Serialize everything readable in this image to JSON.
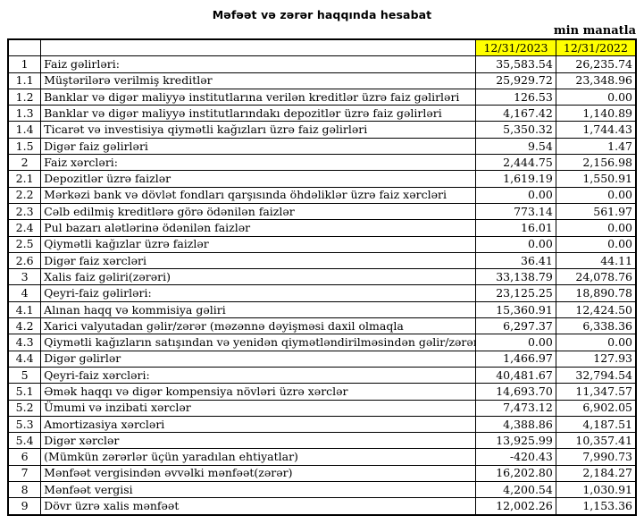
{
  "page": {
    "title": "Məfəət və zərər haqqında hesabat",
    "unit_note": "min manatla"
  },
  "table": {
    "header": {
      "period_2023": "12/31/2023",
      "period_2022": "12/31/2022",
      "highlight_color": "#FFFF00"
    },
    "rows": [
      {
        "no": "1",
        "label": "Faiz gəlirləri:",
        "v2023": "35,583.54",
        "v2022": "26,235.74",
        "bold_label": true,
        "bold_values": true
      },
      {
        "no": "1.1",
        "label": "Müştərilərə verilmiş kreditlər",
        "v2023": "25,929.72",
        "v2022": "23,348.96",
        "bold_label": false,
        "bold_values": false
      },
      {
        "no": "1.2",
        "label": "Banklar və digər maliyyə institutlarına verilən kreditlər üzrə faiz gəlirləri",
        "v2023": "126.53",
        "v2022": "0.00",
        "bold_label": false,
        "bold_values": false
      },
      {
        "no": "1.3",
        "label": "Banklar və digər maliyyə institutlarındakı depozitlər üzrə faiz gəlirləri",
        "v2023": "4,167.42",
        "v2022": "1,140.89",
        "bold_label": false,
        "bold_values": false
      },
      {
        "no": "1.4",
        "label": "Ticarət və investisiya qiymətli kağızları üzrə faiz gəlirləri",
        "v2023": "5,350.32",
        "v2022": "1,744.43",
        "bold_label": false,
        "bold_values": false
      },
      {
        "no": "1.5",
        "label": "Digər faiz gəlirləri",
        "v2023": "9.54",
        "v2022": "1.47",
        "bold_label": false,
        "bold_values": false
      },
      {
        "no": "2",
        "label": "Faiz xərcləri:",
        "v2023": "2,444.75",
        "v2022": "2,156.98",
        "bold_label": true,
        "bold_values": true
      },
      {
        "no": "2.1",
        "label": "Depozitlər üzrə faizlər",
        "v2023": "1,619.19",
        "v2022": "1,550.91",
        "bold_label": false,
        "bold_values": false
      },
      {
        "no": "2.2",
        "label": "Mərkəzi bank və dövlət fondları qarşısında öhdəliklər üzrə faiz xərcləri",
        "v2023": "0.00",
        "v2022": "0.00",
        "bold_label": false,
        "bold_values": false
      },
      {
        "no": "2.3",
        "label": "Cəlb edilmiş kreditlərə görə ödənilən faizlər",
        "v2023": "773.14",
        "v2022": "561.97",
        "bold_label": false,
        "bold_values": false
      },
      {
        "no": "2.4",
        "label": "Pul bazarı alətlərinə ödənilən faizlər",
        "v2023": "16.01",
        "v2022": "0.00",
        "bold_label": false,
        "bold_values": false
      },
      {
        "no": "2.5",
        "label": "Qiymətli kağızlar üzrə faizlər",
        "v2023": "0.00",
        "v2022": "0.00",
        "bold_label": false,
        "bold_values": false
      },
      {
        "no": "2.6",
        "label": "Digər faiz xərcləri",
        "v2023": "36.41",
        "v2022": "44.11",
        "bold_label": false,
        "bold_values": false
      },
      {
        "no": "3",
        "label": "Xalis faiz gəliri(zərəri)",
        "v2023": "33,138.79",
        "v2022": "24,078.76",
        "bold_label": true,
        "bold_values": true
      },
      {
        "no": "4",
        "label": "Qeyri-faiz gəlirləri:",
        "v2023": "23,125.25",
        "v2022": "18,890.78",
        "bold_label": true,
        "bold_values": true
      },
      {
        "no": "4.1",
        "label": "Alınan haqq və kommisiya gəliri",
        "v2023": "15,360.91",
        "v2022": "12,424.50",
        "bold_label": false,
        "bold_values": false
      },
      {
        "no": "4.2",
        "label": "Xarici valyutadan gəlir/zərər (məzənnə dəyişməsi daxil olmaqla",
        "v2023": "6,297.37",
        "v2022": "6,338.36",
        "bold_label": false,
        "bold_values": false
      },
      {
        "no": "4.3",
        "label": "Qiymətli kağızların satışından və yenidən qiymətləndirilməsindən gəlir/zərər",
        "v2023": "0.00",
        "v2022": "0.00",
        "bold_label": false,
        "bold_values": false
      },
      {
        "no": "4.4",
        "label": "Digər gəlirlər",
        "v2023": "1,466.97",
        "v2022": "127.93",
        "bold_label": false,
        "bold_values": false
      },
      {
        "no": "5",
        "label": "Qeyri-faiz xərcləri:",
        "v2023": "40,481.67",
        "v2022": "32,794.54",
        "bold_label": true,
        "bold_values": true
      },
      {
        "no": "5.1",
        "label": "Əmək haqqı və digər kompensiya növləri üzrə xərclər",
        "v2023": "14,693.70",
        "v2022": "11,347.57",
        "bold_label": false,
        "bold_values": false
      },
      {
        "no": "5.2",
        "label": "Ümumi və inzibati xərclər",
        "v2023": "7,473.12",
        "v2022": "6,902.05",
        "bold_label": false,
        "bold_values": false
      },
      {
        "no": "5.3",
        "label": "Amortizasiya xərcləri",
        "v2023": "4,388.86",
        "v2022": "4,187.51",
        "bold_label": false,
        "bold_values": false
      },
      {
        "no": "5.4",
        "label": "Digər xərclər",
        "v2023": "13,925.99",
        "v2022": "10,357.41",
        "bold_label": false,
        "bold_values": false
      },
      {
        "no": "6",
        "label": "(Mümkün zərərlər üçün yaradılan ehtiyatlar)",
        "v2023": "-420.43",
        "v2022": "7,990.73",
        "bold_label": true,
        "bold_values": false
      },
      {
        "no": "7",
        "label": "Mənfəət vergisindən əvvəlki mənfəət(zərər)",
        "v2023": "16,202.80",
        "v2022": "2,184.27",
        "bold_label": true,
        "bold_values": true
      },
      {
        "no": "8",
        "label": "Mənfəət vergisi",
        "v2023": "4,200.54",
        "v2022": "1,030.91",
        "bold_label": true,
        "bold_values": false
      },
      {
        "no": "9",
        "label": "Dövr üzrə xalis mənfəət",
        "v2023": "12,002.26",
        "v2022": "1,153.36",
        "bold_label": true,
        "bold_values": true
      }
    ]
  }
}
